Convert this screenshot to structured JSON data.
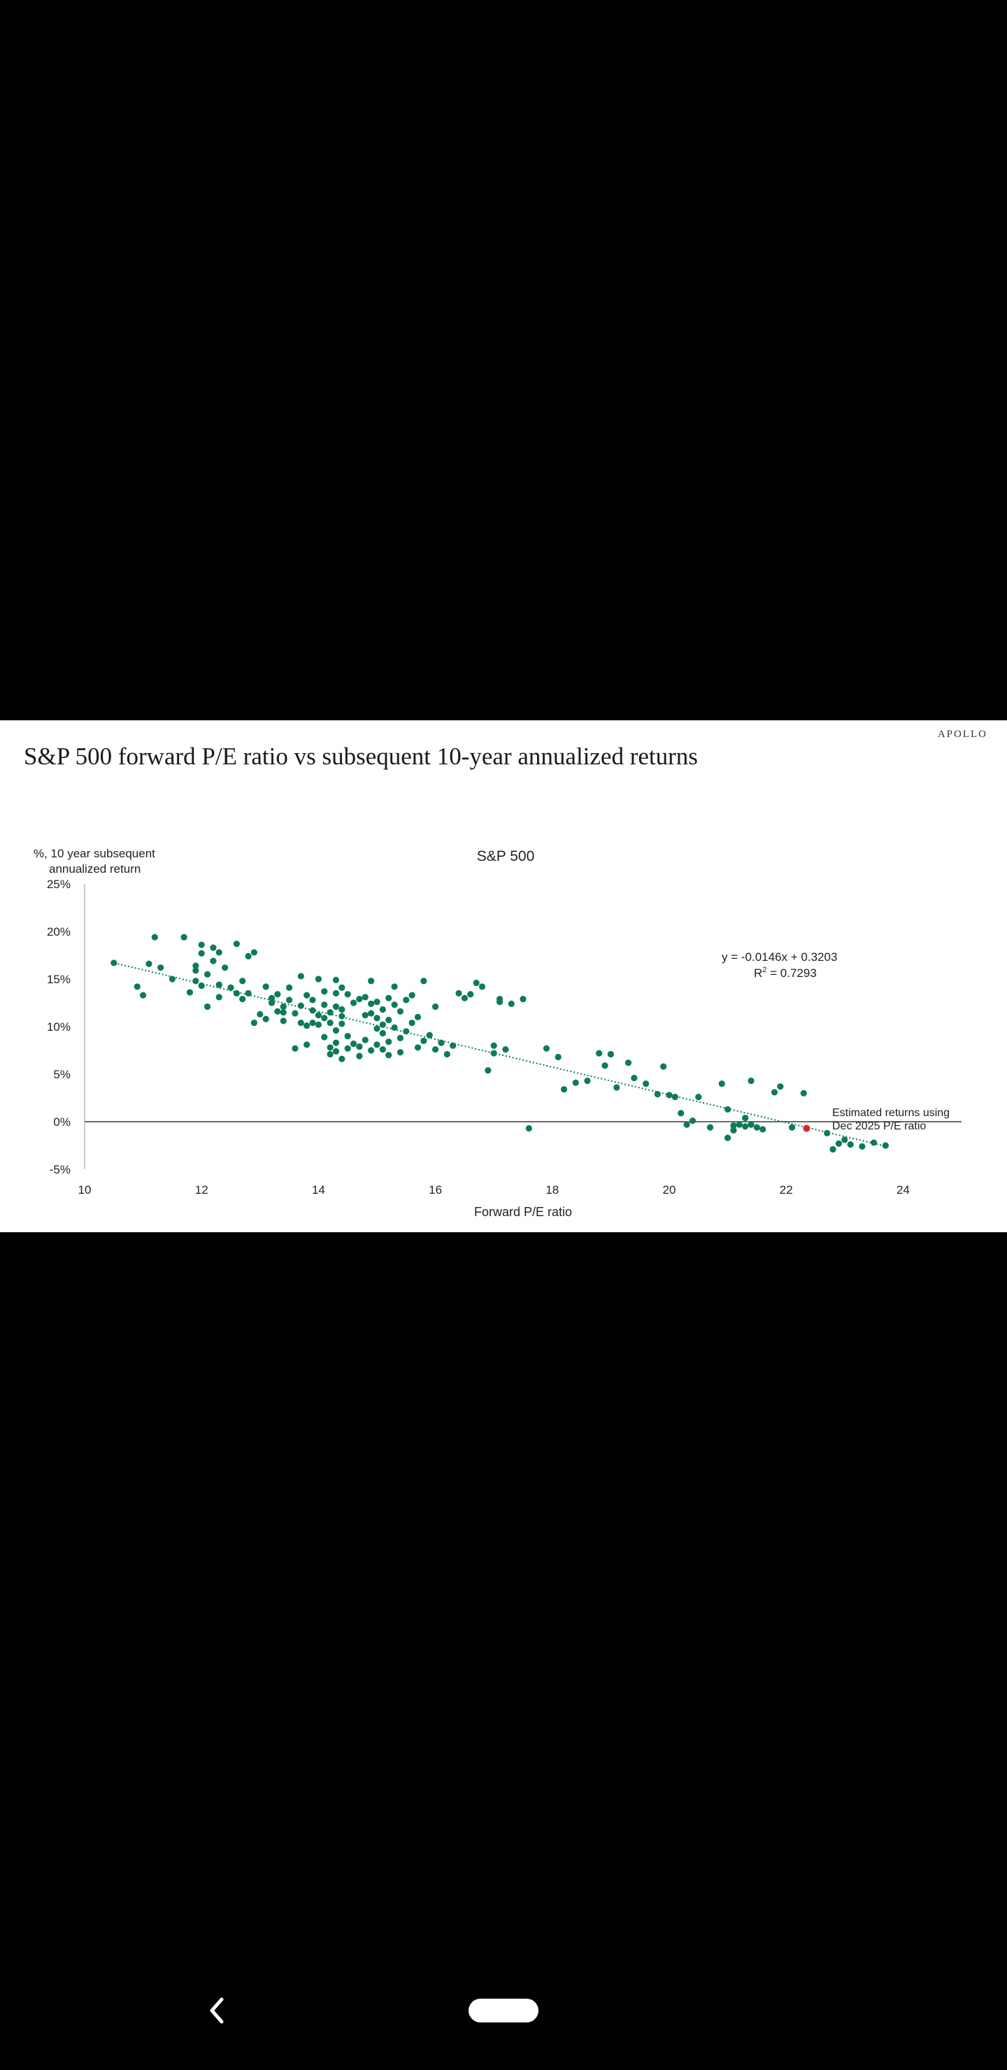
{
  "brand": "APOLLO",
  "title": "S&P 500 forward P/E ratio vs subsequent 10-year annualized returns",
  "chart_data": {
    "type": "scatter",
    "title": "S&P 500",
    "xlabel": "Forward P/E ratio",
    "ylabel_lines": [
      "%, 10 year subsequent",
      "annualized return"
    ],
    "xlim": [
      10,
      25
    ],
    "ylim": [
      -5,
      25
    ],
    "xticks": [
      10,
      12,
      14,
      16,
      18,
      20,
      22,
      24
    ],
    "yticks": [
      25,
      20,
      15,
      10,
      5,
      0,
      -5
    ],
    "ytick_labels": [
      "25%",
      "20%",
      "15%",
      "10%",
      "5%",
      "0%",
      "-5%"
    ],
    "equation": "y = -0.0146x + 0.3203",
    "r_squared_label": "R",
    "r_squared_value": " = 0.7293",
    "trend": {
      "slope": -0.0146,
      "intercept": 0.3203
    },
    "annotation_lines": [
      "Estimated returns using",
      "Dec 2025 P/E ratio"
    ],
    "highlight_point": {
      "x": 22.35,
      "y": -0.7
    },
    "colors": {
      "points": "#0f7a5a",
      "highlight": "#d62728",
      "axis": "#555555",
      "trend": "#0f7a5a"
    },
    "points": [
      [
        10.5,
        16.7
      ],
      [
        10.9,
        14.2
      ],
      [
        11.0,
        13.3
      ],
      [
        11.1,
        16.6
      ],
      [
        11.2,
        19.4
      ],
      [
        11.3,
        16.2
      ],
      [
        11.5,
        15.0
      ],
      [
        11.7,
        19.4
      ],
      [
        11.8,
        13.6
      ],
      [
        11.9,
        15.9
      ],
      [
        11.9,
        14.8
      ],
      [
        11.9,
        16.4
      ],
      [
        12.0,
        18.6
      ],
      [
        12.0,
        17.7
      ],
      [
        12.0,
        14.3
      ],
      [
        12.1,
        12.1
      ],
      [
        12.1,
        15.5
      ],
      [
        12.2,
        16.9
      ],
      [
        12.2,
        18.3
      ],
      [
        12.3,
        17.8
      ],
      [
        12.3,
        14.4
      ],
      [
        12.3,
        13.1
      ],
      [
        12.4,
        16.2
      ],
      [
        12.5,
        14.1
      ],
      [
        12.6,
        13.5
      ],
      [
        12.6,
        18.7
      ],
      [
        12.7,
        12.9
      ],
      [
        12.7,
        14.8
      ],
      [
        12.8,
        17.4
      ],
      [
        12.8,
        13.5
      ],
      [
        12.9,
        17.8
      ],
      [
        12.9,
        10.4
      ],
      [
        13.0,
        11.3
      ],
      [
        13.1,
        14.2
      ],
      [
        13.1,
        10.8
      ],
      [
        13.2,
        13.0
      ],
      [
        13.2,
        12.5
      ],
      [
        13.3,
        11.6
      ],
      [
        13.3,
        13.4
      ],
      [
        13.4,
        10.6
      ],
      [
        13.4,
        12.1
      ],
      [
        13.4,
        11.5
      ],
      [
        13.5,
        14.1
      ],
      [
        13.5,
        12.8
      ],
      [
        13.6,
        11.4
      ],
      [
        13.6,
        7.7
      ],
      [
        13.7,
        10.4
      ],
      [
        13.7,
        12.2
      ],
      [
        13.7,
        15.3
      ],
      [
        13.8,
        13.3
      ],
      [
        13.8,
        10.1
      ],
      [
        13.8,
        8.1
      ],
      [
        13.9,
        11.7
      ],
      [
        13.9,
        12.8
      ],
      [
        13.9,
        10.4
      ],
      [
        14.0,
        11.2
      ],
      [
        14.0,
        15.0
      ],
      [
        14.0,
        10.2
      ],
      [
        14.1,
        12.3
      ],
      [
        14.1,
        8.9
      ],
      [
        14.1,
        13.7
      ],
      [
        14.1,
        10.9
      ],
      [
        14.2,
        7.8
      ],
      [
        14.2,
        7.1
      ],
      [
        14.2,
        10.4
      ],
      [
        14.2,
        11.5
      ],
      [
        14.3,
        12.1
      ],
      [
        14.3,
        9.6
      ],
      [
        14.3,
        8.3
      ],
      [
        14.3,
        14.9
      ],
      [
        14.3,
        13.5
      ],
      [
        14.3,
        7.4
      ],
      [
        14.4,
        11.1
      ],
      [
        14.4,
        6.6
      ],
      [
        14.4,
        14.1
      ],
      [
        14.4,
        10.3
      ],
      [
        14.4,
        11.8
      ],
      [
        14.5,
        7.7
      ],
      [
        14.5,
        13.4
      ],
      [
        14.5,
        9.0
      ],
      [
        14.6,
        12.5
      ],
      [
        14.6,
        8.2
      ],
      [
        14.7,
        7.9
      ],
      [
        14.7,
        12.9
      ],
      [
        14.7,
        6.9
      ],
      [
        14.8,
        8.6
      ],
      [
        14.8,
        13.1
      ],
      [
        14.8,
        11.2
      ],
      [
        14.9,
        11.4
      ],
      [
        14.9,
        14.8
      ],
      [
        14.9,
        7.5
      ],
      [
        14.9,
        12.4
      ],
      [
        15.0,
        9.8
      ],
      [
        15.0,
        10.9
      ],
      [
        15.0,
        8.1
      ],
      [
        15.0,
        12.6
      ],
      [
        15.1,
        10.2
      ],
      [
        15.1,
        7.6
      ],
      [
        15.1,
        11.8
      ],
      [
        15.1,
        9.3
      ],
      [
        15.2,
        13.0
      ],
      [
        15.2,
        8.4
      ],
      [
        15.2,
        10.7
      ],
      [
        15.2,
        7.0
      ],
      [
        15.3,
        12.3
      ],
      [
        15.3,
        9.9
      ],
      [
        15.3,
        14.2
      ],
      [
        15.4,
        8.8
      ],
      [
        15.4,
        11.6
      ],
      [
        15.4,
        7.3
      ],
      [
        15.5,
        12.8
      ],
      [
        15.5,
        9.5
      ],
      [
        15.6,
        10.4
      ],
      [
        15.6,
        13.3
      ],
      [
        15.7,
        7.8
      ],
      [
        15.7,
        11.0
      ],
      [
        15.8,
        8.5
      ],
      [
        15.8,
        14.8
      ],
      [
        15.9,
        9.1
      ],
      [
        16.0,
        7.6
      ],
      [
        16.0,
        12.1
      ],
      [
        16.1,
        8.3
      ],
      [
        16.2,
        7.1
      ],
      [
        16.3,
        8.0
      ],
      [
        16.4,
        13.5
      ],
      [
        16.5,
        13.0
      ],
      [
        16.6,
        13.4
      ],
      [
        16.7,
        14.6
      ],
      [
        16.8,
        14.2
      ],
      [
        16.9,
        5.4
      ],
      [
        17.0,
        7.2
      ],
      [
        17.0,
        8.0
      ],
      [
        17.1,
        12.6
      ],
      [
        17.1,
        12.9
      ],
      [
        17.2,
        7.6
      ],
      [
        17.3,
        12.4
      ],
      [
        17.5,
        12.9
      ],
      [
        17.6,
        -0.7
      ],
      [
        17.9,
        7.7
      ],
      [
        18.1,
        6.8
      ],
      [
        18.2,
        3.4
      ],
      [
        18.4,
        4.1
      ],
      [
        18.6,
        4.3
      ],
      [
        18.8,
        7.2
      ],
      [
        18.9,
        5.9
      ],
      [
        19.0,
        7.1
      ],
      [
        19.1,
        3.6
      ],
      [
        19.3,
        6.2
      ],
      [
        19.4,
        4.6
      ],
      [
        19.6,
        4.0
      ],
      [
        19.8,
        2.9
      ],
      [
        19.9,
        5.8
      ],
      [
        20.0,
        2.8
      ],
      [
        20.1,
        2.6
      ],
      [
        20.2,
        0.9
      ],
      [
        20.3,
        -0.3
      ],
      [
        20.4,
        0.1
      ],
      [
        20.5,
        2.6
      ],
      [
        20.7,
        -0.6
      ],
      [
        20.9,
        4.0
      ],
      [
        21.0,
        -1.7
      ],
      [
        21.0,
        1.3
      ],
      [
        21.1,
        -0.4
      ],
      [
        21.1,
        -0.9
      ],
      [
        21.2,
        -0.3
      ],
      [
        21.3,
        0.4
      ],
      [
        21.3,
        -0.5
      ],
      [
        21.4,
        -0.3
      ],
      [
        21.4,
        4.3
      ],
      [
        21.5,
        -0.6
      ],
      [
        21.6,
        -0.8
      ],
      [
        21.8,
        3.1
      ],
      [
        21.9,
        3.7
      ],
      [
        22.1,
        -0.6
      ],
      [
        22.3,
        3.0
      ],
      [
        22.7,
        -1.2
      ],
      [
        22.8,
        -2.9
      ],
      [
        22.9,
        -2.3
      ],
      [
        23.0,
        -1.9
      ],
      [
        23.1,
        -2.4
      ],
      [
        23.3,
        -2.6
      ],
      [
        23.5,
        -2.2
      ],
      [
        23.7,
        -2.5
      ]
    ]
  },
  "nav": {
    "back_glyph": "‹"
  }
}
